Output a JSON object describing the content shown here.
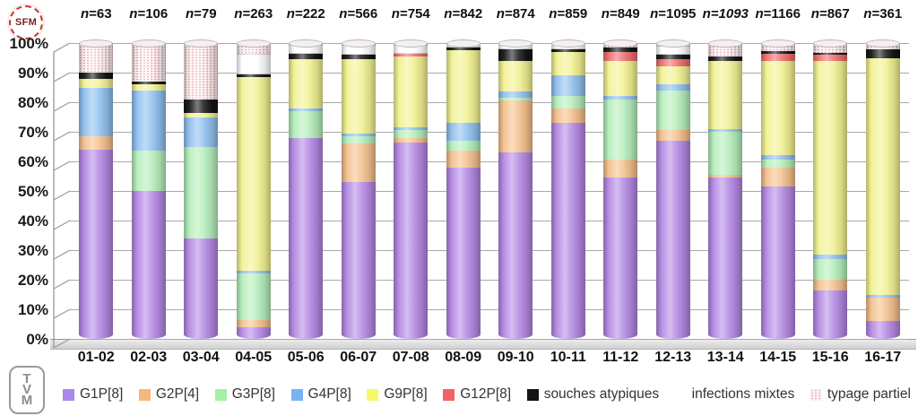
{
  "figure": {
    "sfm_logo_text": "SFM",
    "tvm_logo_letters": [
      "T",
      "V",
      "M"
    ]
  },
  "y_axis_labels": [
    "100%",
    "90%",
    "80%",
    "70%",
    "60%",
    "50%",
    "40%",
    "30%",
    "20%",
    "10%",
    "0%"
  ],
  "chart_data": {
    "type": "bar",
    "subtype": "stacked-percent-cylinders",
    "title": "",
    "xlabel": "",
    "ylabel": "",
    "ylim": [
      0,
      100
    ],
    "grid": true,
    "legend_position": "bottom",
    "categories": [
      "01-02",
      "02-03",
      "03-04",
      "04-05",
      "05-06",
      "06-07",
      "07-08",
      "08-09",
      "09-10",
      "10-11",
      "11-12",
      "12-13",
      "13-14",
      "14-15",
      "15-16",
      "16-17"
    ],
    "n_labels": [
      {
        "text": "n=63"
      },
      {
        "text": "n=106"
      },
      {
        "text": "n=79"
      },
      {
        "text": "n=263"
      },
      {
        "text": "n=222"
      },
      {
        "text": "n=566"
      },
      {
        "text": "n=754"
      },
      {
        "text": "n=842"
      },
      {
        "text": "n=874"
      },
      {
        "text": "n=859"
      },
      {
        "text": "n=849"
      },
      {
        "text": "n=1095"
      },
      {
        "text": "n=1093",
        "italic": true
      },
      {
        "text": "n=1166"
      },
      {
        "text": "n=867"
      },
      {
        "text": "n=361"
      }
    ],
    "series": [
      {
        "name": "G1P[8]",
        "color": "#b488e4",
        "legend_color": "#a98ae8",
        "pattern": "solid",
        "values": [
          64,
          50,
          34,
          4,
          68,
          53,
          66.5,
          58,
          63,
          73,
          54.5,
          67,
          54.5,
          51.5,
          16.5,
          6
        ]
      },
      {
        "name": "G2P[4]",
        "color": "#f4c08c",
        "legend_color": "#f6b878",
        "pattern": "solid",
        "values": [
          4.5,
          0,
          0,
          2.5,
          0,
          13,
          1.5,
          5.5,
          17.5,
          5,
          6,
          3.5,
          1,
          6.5,
          3.5,
          8
        ]
      },
      {
        "name": "G3P[8]",
        "color": "#b5eebb",
        "legend_color": "#a2f0a2",
        "pattern": "solid",
        "values": [
          0,
          13.5,
          31,
          15.5,
          9,
          2.5,
          2.5,
          3.5,
          1,
          4,
          20.5,
          13.5,
          14.5,
          2.5,
          7,
          0
        ]
      },
      {
        "name": "G4P[8]",
        "color": "#8fc0ee",
        "legend_color": "#78b4f2",
        "pattern": "solid",
        "values": [
          16.5,
          20.5,
          10,
          1,
          1,
          1,
          1,
          6,
          2,
          7,
          1,
          2,
          1,
          1.5,
          1.5,
          1
        ]
      },
      {
        "name": "G9P[8]",
        "color": "#f2f292",
        "legend_color": "#f8f868",
        "pattern": "solid",
        "values": [
          3,
          2,
          1.5,
          65.5,
          16.5,
          25,
          24,
          24.5,
          10.5,
          8,
          12,
          6,
          23,
          32,
          65.5,
          80
        ]
      },
      {
        "name": "G12P[8]",
        "color": "#ef6d6d",
        "legend_color": "#f56262",
        "pattern": "solid",
        "values": [
          0,
          0,
          0,
          0,
          0,
          0,
          1,
          0,
          0,
          0,
          3,
          2.5,
          0,
          2.5,
          2,
          0
        ]
      },
      {
        "name": "souches atypiques",
        "color": "#141414",
        "legend_color": "#141414",
        "pattern": "solid",
        "values": [
          2,
          1,
          4.5,
          1,
          2,
          1.5,
          0,
          1,
          4,
          1,
          1.5,
          1.5,
          1.5,
          0.7,
          0.8,
          3
        ]
      },
      {
        "name": "infections mixtes",
        "color": "#ffffff",
        "legend_color": "#ffffff",
        "pattern": "white",
        "values": [
          0,
          0,
          0,
          7,
          3,
          3.5,
          3,
          1.5,
          2,
          2,
          0,
          3,
          0,
          0,
          0,
          0
        ]
      },
      {
        "name": "typage partiel",
        "color": "#fdf4f4",
        "legend_color": "#fdf4f4",
        "pattern": "dots",
        "values": [
          10,
          13,
          19,
          3.5,
          0.5,
          0.5,
          0.5,
          0,
          0,
          0,
          1.5,
          1,
          4.5,
          2.8,
          3.2,
          2
        ]
      }
    ]
  }
}
